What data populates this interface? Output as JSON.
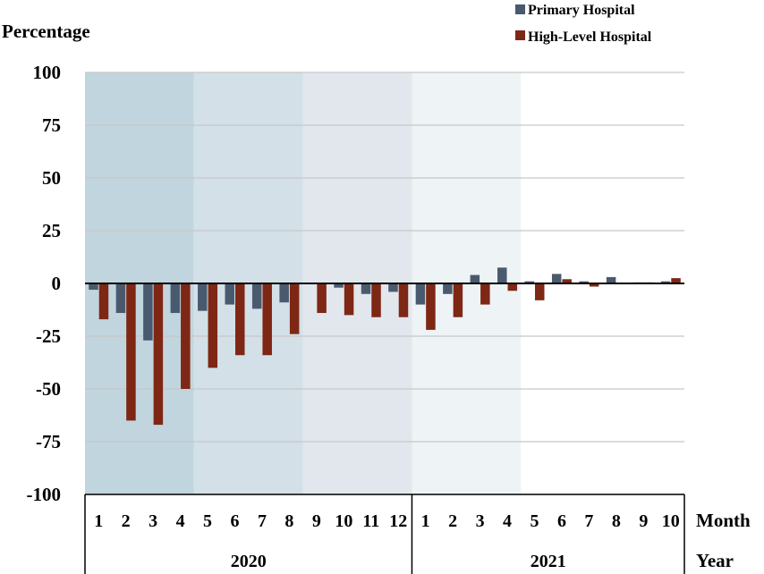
{
  "chart_data": {
    "type": "bar",
    "ylabel": "Percentage",
    "ylim": [
      -100,
      100
    ],
    "yticks": [
      100,
      75,
      50,
      25,
      0,
      -25,
      -50,
      -75,
      -100
    ],
    "xlabel": "Month",
    "xlabel2": "Year",
    "categories": [
      "1",
      "2",
      "3",
      "4",
      "5",
      "6",
      "7",
      "8",
      "9",
      "10",
      "11",
      "12",
      "1",
      "2",
      "3",
      "4",
      "5",
      "6",
      "7",
      "8",
      "9",
      "10"
    ],
    "years": [
      {
        "label": "2020",
        "start": 0,
        "end": 12
      },
      {
        "label": "2021",
        "start": 12,
        "end": 22
      }
    ],
    "background_bands": [
      {
        "start": 0,
        "end": 4,
        "color": "#c1d5de"
      },
      {
        "start": 4,
        "end": 8,
        "color": "#d3e0e7"
      },
      {
        "start": 8,
        "end": 12,
        "color": "#e1e7ec"
      },
      {
        "start": 12,
        "end": 16,
        "color": "#eef3f5"
      }
    ],
    "series": [
      {
        "name": "Primary Hospital",
        "color": "#4a5a6e",
        "values": [
          -3,
          -14,
          -27,
          -14,
          -13,
          -10,
          -12,
          -9,
          0,
          -2,
          -5,
          -4,
          -10,
          -5,
          4,
          7.5,
          1,
          4.5,
          1,
          3,
          0.5,
          1
        ]
      },
      {
        "name": "High-Level Hospital",
        "color": "#7e2714",
        "values": [
          -17,
          -65,
          -67,
          -50,
          -40,
          -34,
          -34,
          -24,
          -14,
          -15,
          -16,
          -16,
          -22,
          -16,
          -10,
          -3.5,
          -8,
          2,
          -1.5,
          0,
          0.5,
          2.5
        ]
      }
    ]
  }
}
